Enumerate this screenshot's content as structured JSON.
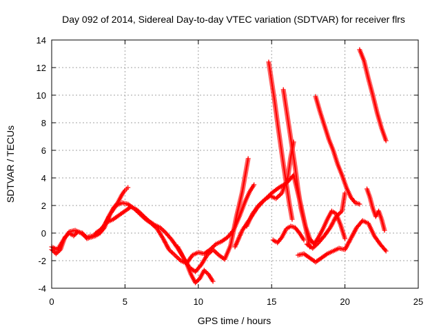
{
  "chart_data": {
    "type": "scatter",
    "title": "Day 092 of 2014, Sidereal Day-to-day VTEC variation (SDTVAR) for receiver flrs",
    "xlabel": "GPS time / hours",
    "ylabel": "SDTVAR / TECUs",
    "xlim": [
      0,
      25
    ],
    "ylim": [
      -4,
      14
    ],
    "xticks": [
      "0",
      "5",
      "10",
      "15",
      "20",
      "25"
    ],
    "yticks": [
      "-4",
      "-2",
      "0",
      "2",
      "4",
      "6",
      "8",
      "10",
      "12",
      "14"
    ],
    "grid": true,
    "marker": "+",
    "colors": {
      "series": "#ff0000",
      "grid": "#a0a0a0",
      "axis": "#000000"
    },
    "series": [
      {
        "x": [
          0.0,
          0.3,
          0.6,
          0.9,
          1.2,
          1.5,
          1.8,
          2.1,
          2.4,
          2.7,
          3.0,
          3.3,
          3.6,
          3.9,
          4.2,
          4.5,
          4.8,
          5.0,
          5.2
        ],
        "y": [
          -1.2,
          -1.5,
          -1.2,
          -0.3,
          0.0,
          -0.2,
          0.1,
          0.0,
          -0.4,
          -0.3,
          -0.2,
          0.0,
          0.4,
          1.2,
          1.8,
          2.2,
          2.8,
          3.1,
          3.3
        ]
      },
      {
        "x": [
          0.0,
          0.4,
          0.8,
          1.2,
          1.6,
          2.0,
          2.4,
          2.8,
          3.2,
          3.6,
          4.0,
          4.4,
          4.8,
          5.2,
          5.6,
          6.0,
          6.4,
          6.8,
          7.2,
          7.6,
          8.0,
          8.4,
          8.8,
          9.2,
          9.6,
          10.0,
          10.4,
          10.8,
          11.2,
          11.6,
          12.0,
          12.4,
          12.8,
          13.2,
          13.5,
          13.8
        ],
        "y": [
          -1.0,
          -1.2,
          -0.5,
          0.1,
          0.2,
          0.0,
          -0.3,
          -0.2,
          0.0,
          0.6,
          1.4,
          2.0,
          2.2,
          2.1,
          1.8,
          1.4,
          1.0,
          0.7,
          0.3,
          -0.4,
          -1.2,
          -1.6,
          -2.0,
          -2.2,
          -1.6,
          -1.4,
          -1.5,
          -1.2,
          -0.8,
          -0.6,
          -0.3,
          0.2,
          1.2,
          2.3,
          3.0,
          3.5
        ]
      },
      {
        "x": [
          3.0,
          3.4,
          3.8,
          4.2,
          4.6,
          5.0,
          5.4,
          5.8,
          6.2,
          6.6,
          7.0,
          7.4,
          7.8,
          8.2,
          8.6,
          9.0,
          9.4,
          9.8,
          10.2,
          10.6,
          11.0,
          11.4,
          11.8,
          12.2,
          12.6,
          13.0,
          13.2,
          13.4
        ],
        "y": [
          0.0,
          0.3,
          0.8,
          1.0,
          1.3,
          1.6,
          1.9,
          1.7,
          1.3,
          0.9,
          0.6,
          0.4,
          0.0,
          -0.5,
          -1.1,
          -1.8,
          -2.5,
          -2.8,
          -2.3,
          -1.6,
          -1.2,
          -1.6,
          -1.9,
          -0.9,
          1.2,
          3.0,
          4.2,
          5.4
        ]
      },
      {
        "x": [
          8.6,
          8.9,
          9.2,
          9.5,
          9.8,
          10.1,
          10.4,
          10.7,
          11.0
        ],
        "y": [
          -1.0,
          -1.6,
          -2.2,
          -3.0,
          -3.6,
          -3.3,
          -2.7,
          -3.0,
          -3.5
        ]
      },
      {
        "x": [
          12.5,
          13.0,
          13.5,
          14.0,
          14.5,
          15.0,
          15.5,
          16.0,
          16.5,
          17.0,
          17.3,
          17.6
        ],
        "y": [
          -1.0,
          0.2,
          1.0,
          1.8,
          2.4,
          2.9,
          3.3,
          3.6,
          4.2,
          2.0,
          0.5,
          -1.0
        ]
      },
      {
        "x": [
          13.3,
          13.7,
          14.1,
          14.5,
          14.9,
          15.3,
          15.7,
          16.1,
          16.3,
          16.5
        ],
        "y": [
          0.5,
          1.4,
          2.0,
          2.4,
          2.7,
          2.5,
          2.9,
          4.0,
          5.5,
          6.6
        ]
      },
      {
        "x": [
          14.8,
          15.0,
          15.2,
          15.4,
          15.6,
          15.8,
          16.0,
          16.2,
          16.4
        ],
        "y": [
          12.4,
          11.0,
          9.6,
          8.0,
          6.5,
          5.0,
          3.6,
          2.2,
          1.0
        ]
      },
      {
        "x": [
          15.1,
          15.4,
          15.7,
          16.0,
          16.3,
          16.6,
          16.9,
          17.2
        ],
        "y": [
          -0.5,
          -0.7,
          -0.3,
          0.3,
          0.5,
          0.4,
          0.0,
          -0.5
        ]
      },
      {
        "x": [
          15.8,
          16.0,
          16.2,
          16.4,
          16.6,
          16.8,
          17.0,
          17.3,
          17.6,
          17.9,
          18.2,
          18.5,
          18.8,
          19.1,
          19.4,
          19.7,
          20.0
        ],
        "y": [
          10.4,
          9.0,
          7.6,
          6.2,
          4.8,
          3.2,
          1.8,
          0.5,
          -0.4,
          -0.8,
          -0.3,
          0.3,
          1.0,
          1.6,
          1.4,
          0.6,
          -0.4
        ]
      },
      {
        "x": [
          16.8,
          17.2,
          17.6,
          18.0,
          18.4,
          18.8,
          19.2,
          19.6,
          20.0,
          20.4,
          20.8,
          21.2,
          21.6,
          22.0,
          22.4,
          22.8
        ],
        "y": [
          -1.6,
          -1.5,
          -1.8,
          -2.1,
          -1.8,
          -1.5,
          -1.3,
          -1.1,
          -1.2,
          -0.4,
          0.4,
          0.9,
          0.7,
          -0.2,
          -0.8,
          -1.3
        ]
      },
      {
        "x": [
          17.4,
          17.8,
          18.2,
          18.6,
          19.0,
          19.4,
          19.8,
          20.0
        ],
        "y": [
          -0.8,
          -1.1,
          -0.7,
          -0.2,
          0.4,
          1.2,
          1.6,
          2.9
        ]
      },
      {
        "x": [
          18.0,
          18.3,
          18.6,
          18.9,
          19.2,
          19.5,
          19.8,
          20.1,
          20.4,
          20.7,
          21.0
        ],
        "y": [
          9.9,
          8.8,
          7.8,
          6.8,
          6.0,
          5.0,
          4.2,
          3.3,
          2.6,
          2.2,
          2.1
        ]
      },
      {
        "x": [
          21.0,
          21.3,
          21.6,
          21.9,
          22.2,
          22.5,
          22.8
        ],
        "y": [
          13.3,
          12.5,
          11.2,
          10.0,
          8.7,
          7.6,
          6.7
        ]
      },
      {
        "x": [
          21.5,
          21.7,
          21.9,
          22.1,
          22.3,
          22.5,
          22.7
        ],
        "y": [
          3.2,
          2.6,
          1.8,
          1.2,
          1.6,
          1.0,
          0.2
        ]
      }
    ]
  }
}
